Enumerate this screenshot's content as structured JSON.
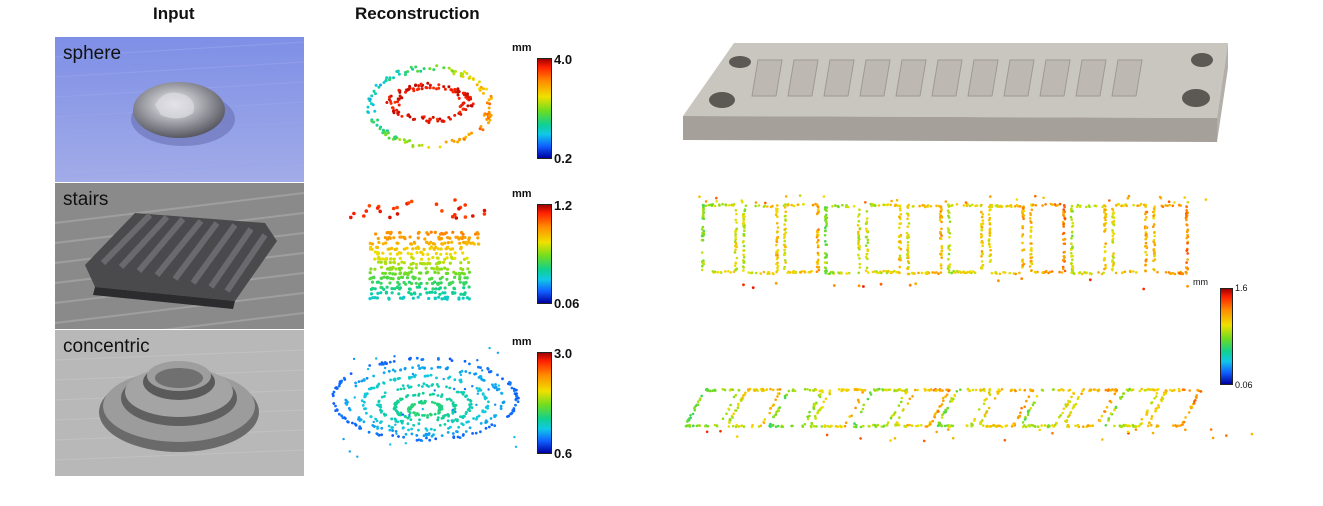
{
  "headers": {
    "input": "Input",
    "reconstruction": "Reconstruction"
  },
  "rows": [
    {
      "label": "sphere",
      "unit": "mm",
      "max": "4.0",
      "min": "0.2"
    },
    {
      "label": "stairs",
      "unit": "mm",
      "max": "1.2",
      "min": "0.06"
    },
    {
      "label": "concentric",
      "unit": "mm",
      "max": "3.0",
      "min": "0.6"
    }
  ],
  "right_colorbar": {
    "unit": "mm",
    "max": "1.6",
    "min": "0.06"
  },
  "colors": {
    "sphere_bg": "#8c9be8",
    "stairs_bg": "#8d8d8d",
    "concentric_bg": "#b9b9b9",
    "part": "#c9c5bf"
  }
}
